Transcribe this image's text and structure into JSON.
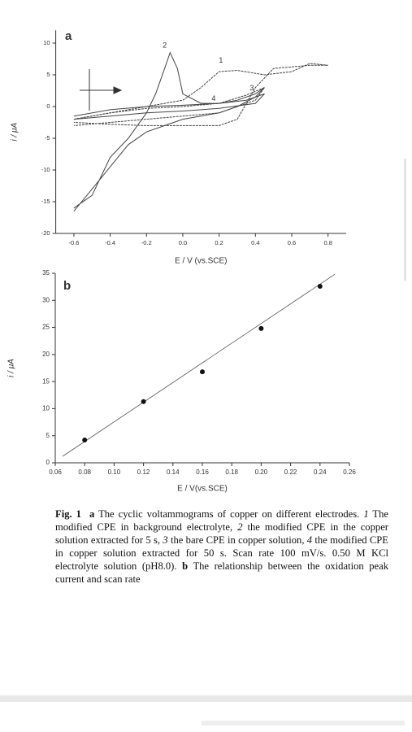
{
  "chart_data": [
    {
      "type": "line",
      "panel": "a",
      "xlabel": "E / V (vs.SCE)",
      "ylabel": "i / μA",
      "xlim": [
        -0.7,
        0.9
      ],
      "xticks": [
        -0.6,
        -0.4,
        -0.2,
        {
          "value": 0,
          "label": "0.0"
        },
        0.2,
        0.4,
        0.6,
        0.8
      ],
      "ylim": [
        -20,
        12
      ],
      "yticks": [
        10,
        5,
        0,
        -5,
        -10,
        -15,
        -20
      ],
      "series": [
        {
          "name": "1",
          "color": "#444",
          "x": [
            -0.6,
            -0.4,
            -0.2,
            0.0,
            0.1,
            0.2,
            0.3,
            0.45,
            0.6,
            0.7,
            0.8,
            0.7,
            0.5,
            0.4,
            0.3,
            0.2,
            0.0,
            -0.2,
            -0.4,
            -0.6
          ],
          "values": [
            -2,
            -1,
            0,
            1,
            3,
            5.5,
            5.7,
            5,
            5.5,
            6.8,
            6.5,
            6.5,
            6,
            3,
            -2,
            -3,
            -3,
            -3,
            -2.8,
            -2.5
          ]
        },
        {
          "name": "2",
          "color": "#444",
          "x": [
            -0.6,
            -0.5,
            -0.4,
            -0.3,
            -0.2,
            -0.15,
            -0.1,
            -0.07,
            -0.03,
            0.0,
            0.1,
            0.2,
            0.3,
            0.4,
            0.45,
            0.4,
            0.3,
            0.2,
            0.1,
            0.0,
            -0.1,
            -0.2,
            -0.3,
            -0.4,
            -0.5,
            -0.6
          ],
          "values": [
            -16,
            -14,
            -8,
            -5,
            -1,
            2,
            6,
            8.5,
            6,
            2,
            0.5,
            0.5,
            1,
            2,
            3,
            1.5,
            0,
            -1,
            -1.5,
            -2,
            -3,
            -4,
            -6,
            -9.5,
            -13,
            -16.5
          ]
        },
        {
          "name": "3",
          "color": "#444",
          "x": [
            -0.6,
            -0.4,
            -0.2,
            0,
            0.2,
            0.35,
            0.45,
            0.4,
            0.2,
            0,
            -0.2,
            -0.4,
            -0.6
          ],
          "values": [
            -2,
            -1,
            -0.3,
            0,
            0.5,
            1.8,
            3,
            1,
            -1,
            -1.5,
            -2,
            -2.5,
            -3
          ]
        },
        {
          "name": "4",
          "color": "#444",
          "x": [
            -0.6,
            -0.4,
            -0.2,
            0,
            0.2,
            0.35,
            0.45,
            0.4,
            0.2,
            0,
            -0.2,
            -0.4,
            -0.6
          ],
          "values": [
            -1.5,
            -0.5,
            0,
            0.2,
            0.5,
            1,
            2,
            0.5,
            -0.3,
            -0.7,
            -1,
            -1.5,
            -2
          ]
        }
      ]
    },
    {
      "type": "scatter",
      "panel": "b",
      "xlabel": "E / V(vs.SCE)",
      "ylabel": "i / μA",
      "xlim": [
        0.06,
        0.26
      ],
      "xticks": [
        0.06,
        0.08,
        {
          "value": 0.1,
          "label": "0.10"
        },
        0.12,
        0.14,
        0.16,
        0.18,
        {
          "value": 0.2,
          "label": "0.20"
        },
        0.22,
        0.24,
        0.26
      ],
      "ylim": [
        0,
        35
      ],
      "yticks": [
        0,
        5,
        10,
        15,
        20,
        25,
        30,
        35
      ],
      "series": [
        {
          "color": "#111",
          "x": [
            0.08,
            0.12,
            0.16,
            0.2,
            0.24
          ],
          "values": [
            4.2,
            11.3,
            16.8,
            24.8,
            32.6
          ]
        }
      ],
      "fit": {
        "color": "#555",
        "x": [
          0.065,
          0.25
        ],
        "values": [
          1.2,
          34.8
        ]
      }
    }
  ],
  "caption": {
    "segments": [
      {
        "text": "Fig. 1  a",
        "style": "bold"
      },
      {
        "text": " The cyclic voltammograms of copper on different electrodes. ",
        "style": "normal"
      },
      {
        "text": "1",
        "style": "italic"
      },
      {
        "text": " The modified CPE in background electrolyte, ",
        "style": "normal"
      },
      {
        "text": "2",
        "style": "italic"
      },
      {
        "text": " the modified CPE in the copper solution extracted for 5 s, ",
        "style": "normal"
      },
      {
        "text": "3",
        "style": "italic"
      },
      {
        "text": " the bare CPE in copper solution, ",
        "style": "normal"
      },
      {
        "text": "4",
        "style": "italic"
      },
      {
        "text": " the modified CPE in copper solution extracted for 50 s. Scan rate 100 mV/s. 0.50 M KCl electrolyte solution (pH8.0). ",
        "style": "normal"
      },
      {
        "text": "b",
        "style": "bold"
      },
      {
        "text": " The relationship between the oxidation peak current and scan rate",
        "style": "normal"
      }
    ]
  }
}
